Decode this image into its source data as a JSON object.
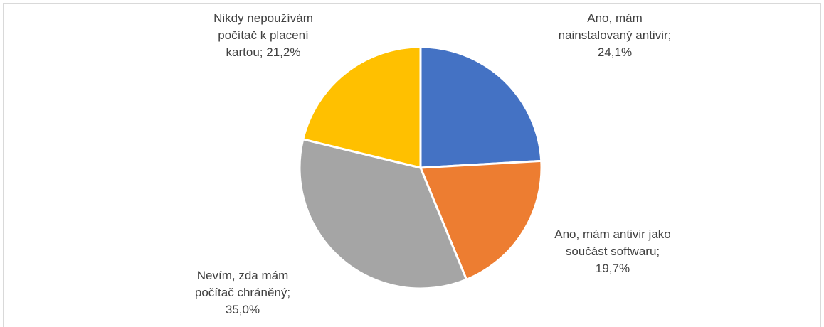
{
  "chart_data": {
    "type": "pie",
    "categories": [
      "Ano, mám nainstalovaný antivir;",
      "Ano, mám antivir jako součást softwaru;",
      "Nevím, zda mám počítač chráněný;",
      "Nikdy nepoužívám počítač k placení kartou;"
    ],
    "values": [
      24.1,
      19.7,
      35.0,
      21.2
    ],
    "value_labels": [
      "24,1%",
      "19,7%",
      "35,0%",
      "21,2%"
    ],
    "colors": [
      "#4472c4",
      "#ed7d31",
      "#a5a5a5",
      "#ffc000"
    ]
  }
}
